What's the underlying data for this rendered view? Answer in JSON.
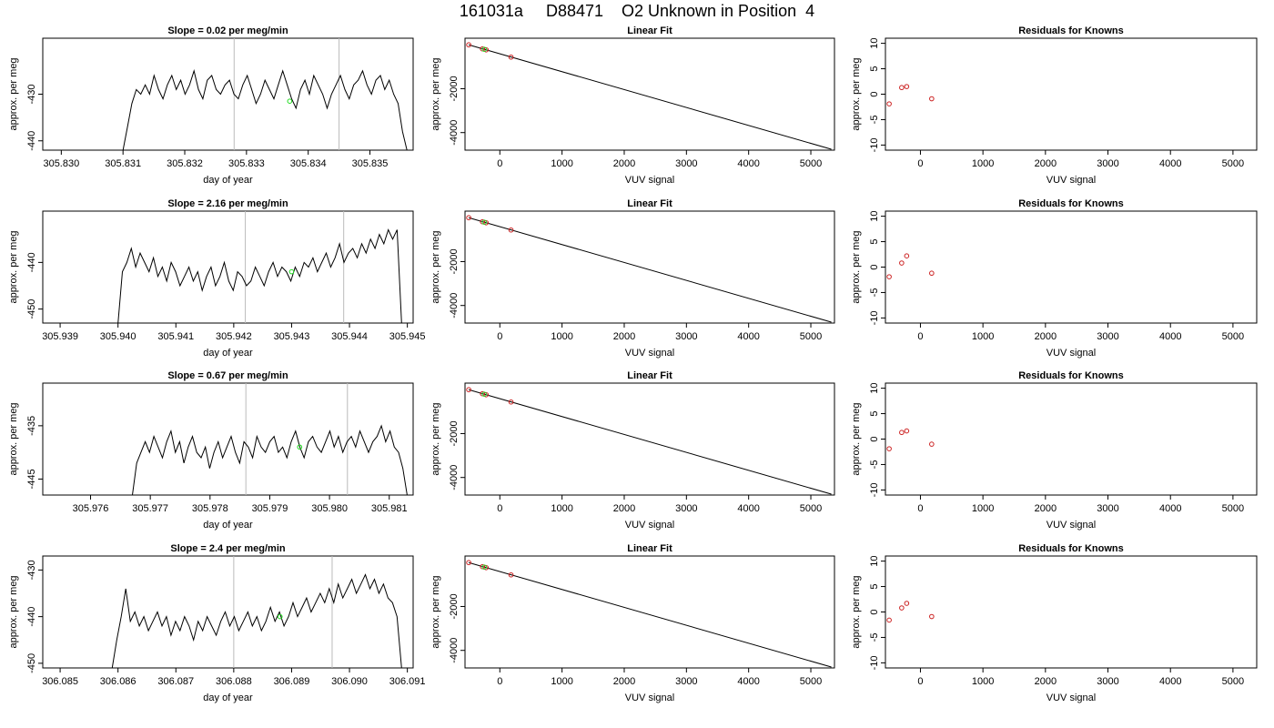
{
  "page_title": "161031a     D88471    O2 Unknown in Position  4",
  "colors": {
    "line": "#000000",
    "marker_green": "#22dd22",
    "marker_red": "#cc2222",
    "vline": "#bbbbbb"
  },
  "chart_data": [
    {
      "row": 1,
      "panel": "time-series",
      "type": "line",
      "title": "Slope =  0.02  per meg/min",
      "xlabel": "day of year",
      "ylabel": "approx. per meg",
      "xlim": [
        305.8297,
        305.8357
      ],
      "ylim": [
        -442,
        -418
      ],
      "xticks": [
        "305.830",
        "305.831",
        "305.832",
        "305.833",
        "305.834",
        "305.835"
      ],
      "yticks": [
        "-430",
        "-440"
      ],
      "vlines": [
        305.8328,
        305.8345
      ],
      "green_point": {
        "x": 305.8337,
        "y": -431.5
      },
      "series_x_range": [
        305.831,
        305.8356
      ],
      "series_y": [
        -442,
        -437,
        -432,
        -429,
        -430,
        -428,
        -430,
        -426,
        -429,
        -431,
        -428,
        -426,
        -429,
        -427,
        -430,
        -428,
        -425,
        -429,
        -431,
        -427,
        -426,
        -429,
        -430,
        -428,
        -427,
        -430,
        -431,
        -428,
        -426,
        -429,
        -432,
        -430,
        -427,
        -429,
        -431,
        -428,
        -425,
        -428,
        -431,
        -433,
        -429,
        -427,
        -430,
        -426,
        -428,
        -430,
        -433,
        -430,
        -428,
        -426,
        -429,
        -431,
        -428,
        -427,
        -425,
        -428,
        -430,
        -427,
        -426,
        -429,
        -427,
        -430,
        -432,
        -438,
        -442
      ]
    },
    {
      "row": 1,
      "panel": "linear-fit",
      "type": "scatter",
      "title": "Linear Fit",
      "xlabel": "VUV signal",
      "ylabel": "approx. per meg",
      "xlim": [
        -560,
        5380
      ],
      "ylim": [
        -4800,
        300
      ],
      "xticks": [
        "0",
        "1000",
        "2000",
        "3000",
        "4000",
        "5000"
      ],
      "yticks": [
        "-2000",
        "-4000"
      ],
      "fit_line": {
        "x": [
          -500,
          5330
        ],
        "y": [
          0,
          -4760
        ]
      },
      "red_points": [
        {
          "x": -500,
          "y": 0
        },
        {
          "x": -280,
          "y": -185
        },
        {
          "x": -220,
          "y": -230
        },
        {
          "x": 180,
          "y": -560
        }
      ],
      "green_points": [
        {
          "x": -250,
          "y": -205
        }
      ]
    },
    {
      "row": 1,
      "panel": "residuals",
      "type": "scatter",
      "title": "Residuals for Knowns",
      "xlabel": "VUV signal",
      "ylabel": "approx. per meg",
      "xlim": [
        -560,
        5380
      ],
      "ylim": [
        -11,
        11
      ],
      "xticks": [
        "0",
        "1000",
        "2000",
        "3000",
        "4000",
        "5000"
      ],
      "yticks": [
        "10",
        "5",
        "0",
        "-5",
        "-10"
      ],
      "red_points": [
        {
          "x": -500,
          "y": -1.9
        },
        {
          "x": -300,
          "y": 1.3
        },
        {
          "x": -220,
          "y": 1.5
        },
        {
          "x": 180,
          "y": -0.9
        }
      ]
    },
    {
      "row": 2,
      "panel": "time-series",
      "type": "line",
      "title": "Slope =  2.16  per meg/min",
      "xlabel": "day of year",
      "ylabel": "approx. per meg",
      "xlim": [
        305.9387,
        305.9451
      ],
      "ylim": [
        -453,
        -429
      ],
      "xticks": [
        "305.939",
        "305.940",
        "305.941",
        "305.942",
        "305.943",
        "305.944",
        "305.945"
      ],
      "yticks": [
        "-440",
        "-450"
      ],
      "vlines": [
        305.9422,
        305.9439
      ],
      "green_point": {
        "x": 305.943,
        "y": -442
      },
      "series_x_range": [
        305.94,
        305.9449
      ],
      "series_y": [
        -453,
        -442,
        -440,
        -437,
        -441,
        -438,
        -440,
        -442,
        -439,
        -443,
        -441,
        -444,
        -440,
        -442,
        -445,
        -443,
        -441,
        -444,
        -442,
        -446,
        -443,
        -441,
        -445,
        -443,
        -440,
        -444,
        -446,
        -442,
        -443,
        -445,
        -444,
        -441,
        -443,
        -445,
        -442,
        -440,
        -443,
        -441,
        -442,
        -444,
        -441,
        -443,
        -440,
        -441,
        -439,
        -442,
        -440,
        -438,
        -441,
        -439,
        -436,
        -440,
        -438,
        -437,
        -439,
        -436,
        -438,
        -435,
        -437,
        -434,
        -436,
        -433,
        -435,
        -433,
        -453
      ]
    },
    {
      "row": 2,
      "panel": "linear-fit",
      "type": "scatter",
      "title": "Linear Fit",
      "xlabel": "VUV signal",
      "ylabel": "approx. per meg",
      "xlim": [
        -560,
        5380
      ],
      "ylim": [
        -4800,
        300
      ],
      "xticks": [
        "0",
        "1000",
        "2000",
        "3000",
        "4000",
        "5000"
      ],
      "yticks": [
        "-2000",
        "-4000"
      ],
      "fit_line": {
        "x": [
          -500,
          5330
        ],
        "y": [
          0,
          -4760
        ]
      },
      "red_points": [
        {
          "x": -500,
          "y": 0
        },
        {
          "x": -280,
          "y": -185
        },
        {
          "x": -220,
          "y": -230
        },
        {
          "x": 180,
          "y": -560
        }
      ],
      "green_points": [
        {
          "x": -250,
          "y": -205
        }
      ]
    },
    {
      "row": 2,
      "panel": "residuals",
      "type": "scatter",
      "title": "Residuals for Knowns",
      "xlabel": "VUV signal",
      "ylabel": "approx. per meg",
      "xlim": [
        -560,
        5380
      ],
      "ylim": [
        -11,
        11
      ],
      "xticks": [
        "0",
        "1000",
        "2000",
        "3000",
        "4000",
        "5000"
      ],
      "yticks": [
        "10",
        "5",
        "0",
        "-5",
        "-10"
      ],
      "red_points": [
        {
          "x": -500,
          "y": -1.9
        },
        {
          "x": -300,
          "y": 0.8
        },
        {
          "x": -220,
          "y": 2.2
        },
        {
          "x": 180,
          "y": -1.2
        }
      ]
    },
    {
      "row": 3,
      "panel": "time-series",
      "type": "line",
      "title": "Slope =  0.67  per meg/min",
      "xlabel": "day of year",
      "ylabel": "approx. per meg",
      "xlim": [
        305.9752,
        305.9814
      ],
      "ylim": [
        -448,
        -427
      ],
      "xticks": [
        "305.976",
        "305.977",
        "305.978",
        "305.979",
        "305.980",
        "305.981"
      ],
      "yticks": [
        "-435",
        "-445"
      ],
      "vlines": [
        305.9786,
        305.9803
      ],
      "green_point": {
        "x": 305.9795,
        "y": -439
      },
      "series_x_range": [
        305.9767,
        305.9813
      ],
      "series_y": [
        -448,
        -442,
        -440,
        -438,
        -440,
        -437,
        -439,
        -441,
        -438,
        -436,
        -440,
        -438,
        -442,
        -439,
        -437,
        -440,
        -441,
        -439,
        -443,
        -440,
        -438,
        -441,
        -439,
        -437,
        -440,
        -442,
        -438,
        -439,
        -441,
        -437,
        -439,
        -440,
        -438,
        -437,
        -440,
        -439,
        -441,
        -438,
        -436,
        -439,
        -441,
        -438,
        -437,
        -439,
        -440,
        -438,
        -436,
        -439,
        -437,
        -440,
        -438,
        -437,
        -439,
        -436,
        -438,
        -440,
        -438,
        -437,
        -435,
        -438,
        -436,
        -439,
        -440,
        -443,
        -448
      ]
    },
    {
      "row": 3,
      "panel": "linear-fit",
      "type": "scatter",
      "title": "Linear Fit",
      "xlabel": "VUV signal",
      "ylabel": "approx. per meg",
      "xlim": [
        -560,
        5380
      ],
      "ylim": [
        -4800,
        300
      ],
      "xticks": [
        "0",
        "1000",
        "2000",
        "3000",
        "4000",
        "5000"
      ],
      "yticks": [
        "-2000",
        "-4000"
      ],
      "fit_line": {
        "x": [
          -500,
          5330
        ],
        "y": [
          0,
          -4760
        ]
      },
      "red_points": [
        {
          "x": -500,
          "y": 0
        },
        {
          "x": -280,
          "y": -185
        },
        {
          "x": -220,
          "y": -230
        },
        {
          "x": 180,
          "y": -560
        }
      ],
      "green_points": [
        {
          "x": -250,
          "y": -205
        }
      ]
    },
    {
      "row": 3,
      "panel": "residuals",
      "type": "scatter",
      "title": "Residuals for Knowns",
      "xlabel": "VUV signal",
      "ylabel": "approx. per meg",
      "xlim": [
        -560,
        5380
      ],
      "ylim": [
        -11,
        11
      ],
      "xticks": [
        "0",
        "1000",
        "2000",
        "3000",
        "4000",
        "5000"
      ],
      "yticks": [
        "10",
        "5",
        "0",
        "-5",
        "-10"
      ],
      "red_points": [
        {
          "x": -500,
          "y": -1.9
        },
        {
          "x": -300,
          "y": 1.3
        },
        {
          "x": -220,
          "y": 1.6
        },
        {
          "x": 180,
          "y": -1.0
        }
      ]
    },
    {
      "row": 4,
      "panel": "time-series",
      "type": "line",
      "title": "Slope =  2.4  per meg/min",
      "xlabel": "day of year",
      "ylabel": "approx. per meg",
      "xlim": [
        306.0847,
        306.0911
      ],
      "ylim": [
        -451,
        -427
      ],
      "xticks": [
        "306.085",
        "306.086",
        "306.087",
        "306.088",
        "306.089",
        "306.090",
        "306.091"
      ],
      "yticks": [
        "-430",
        "-440",
        "-450"
      ],
      "vlines": [
        306.088,
        306.0897
      ],
      "green_point": {
        "x": 306.0888,
        "y": -440
      },
      "series_x_range": [
        306.0859,
        306.0909
      ],
      "series_y": [
        -451,
        -445,
        -440,
        -434,
        -441,
        -439,
        -442,
        -440,
        -443,
        -441,
        -439,
        -442,
        -440,
        -444,
        -441,
        -443,
        -440,
        -442,
        -445,
        -441,
        -443,
        -440,
        -442,
        -444,
        -441,
        -439,
        -442,
        -440,
        -443,
        -441,
        -439,
        -442,
        -440,
        -443,
        -441,
        -438,
        -441,
        -439,
        -442,
        -440,
        -437,
        -440,
        -438,
        -436,
        -439,
        -437,
        -435,
        -437,
        -434,
        -437,
        -433,
        -436,
        -434,
        -432,
        -435,
        -433,
        -431,
        -434,
        -432,
        -435,
        -433,
        -436,
        -437,
        -440,
        -451
      ]
    },
    {
      "row": 4,
      "panel": "linear-fit",
      "type": "scatter",
      "title": "Linear Fit",
      "xlabel": "VUV signal",
      "ylabel": "approx. per meg",
      "xlim": [
        -560,
        5380
      ],
      "ylim": [
        -4800,
        300
      ],
      "xticks": [
        "0",
        "1000",
        "2000",
        "3000",
        "4000",
        "5000"
      ],
      "yticks": [
        "-2000",
        "-4000"
      ],
      "fit_line": {
        "x": [
          -500,
          5330
        ],
        "y": [
          0,
          -4760
        ]
      },
      "red_points": [
        {
          "x": -500,
          "y": 0
        },
        {
          "x": -280,
          "y": -185
        },
        {
          "x": -220,
          "y": -230
        },
        {
          "x": 180,
          "y": -560
        }
      ],
      "green_points": [
        {
          "x": -250,
          "y": -205
        }
      ]
    },
    {
      "row": 4,
      "panel": "residuals",
      "type": "scatter",
      "title": "Residuals for Knowns",
      "xlabel": "VUV signal",
      "ylabel": "approx. per meg",
      "xlim": [
        -560,
        5380
      ],
      "ylim": [
        -11,
        11
      ],
      "xticks": [
        "0",
        "1000",
        "2000",
        "3000",
        "4000",
        "5000"
      ],
      "yticks": [
        "10",
        "5",
        "0",
        "-5",
        "-10"
      ],
      "red_points": [
        {
          "x": -500,
          "y": -1.6
        },
        {
          "x": -300,
          "y": 0.8
        },
        {
          "x": -220,
          "y": 1.7
        },
        {
          "x": 180,
          "y": -0.9
        }
      ]
    }
  ]
}
